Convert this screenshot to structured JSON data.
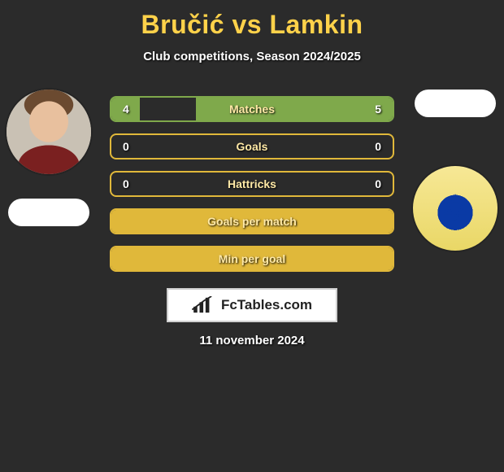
{
  "title": {
    "color": "#ffd24a",
    "player_a": "Bručić",
    "vs": " vs ",
    "player_b": "Lamkin"
  },
  "subtitle": "Club competitions, Season 2024/2025",
  "bar_style": {
    "border_default": "#e0b83a",
    "border_first": "#7fa94b",
    "fill_default": "#e0b83a",
    "fill_first": "#7fa94b",
    "label_color": "#ffe9a6"
  },
  "bars": [
    {
      "left": "4",
      "center": "Matches",
      "right": "5",
      "fill_l_pct": 10,
      "fill_r_pct": 70,
      "first": true
    },
    {
      "left": "0",
      "center": "Goals",
      "right": "0",
      "fill_l_pct": 0,
      "fill_r_pct": 0
    },
    {
      "left": "0",
      "center": "Hattricks",
      "right": "0",
      "fill_l_pct": 0,
      "fill_r_pct": 0
    },
    {
      "left": "",
      "center": "Goals per match",
      "right": "",
      "fill_l_pct": 100,
      "fill_r_pct": 0,
      "full": true
    },
    {
      "left": "",
      "center": "Min per goal",
      "right": "",
      "fill_l_pct": 100,
      "fill_r_pct": 0,
      "full": true
    }
  ],
  "brand_text": "FcTables.com",
  "date_text": "11 november 2024",
  "players": {
    "left": {
      "name_for_avatar": "player-a"
    },
    "right": {
      "name_for_avatar": "player-b",
      "badge_glyph": "✡"
    }
  }
}
